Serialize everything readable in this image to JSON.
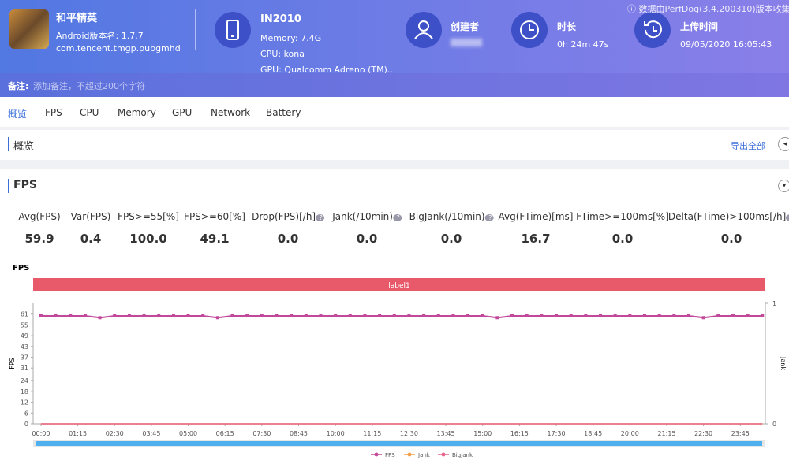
{
  "header": {
    "app": {
      "name": "和平精英",
      "version": "Android版本名: 1.7.7",
      "package": "com.tencent.tmgp.pubgmhd"
    },
    "device": {
      "name": "IN2010",
      "memory": "Memory: 7.4G",
      "cpu": "CPU: kona",
      "gpu": "GPU: Qualcomm Adreno (TM)..."
    },
    "creator": {
      "label": "创建者"
    },
    "duration": {
      "label": "时长",
      "value": "0h 24m 47s"
    },
    "upload": {
      "label": "上传时间",
      "value": "09/05/2020 16:05:43"
    },
    "source_note": "数据由PerfDog(3.4.200310)版本收集"
  },
  "remark": {
    "label": "备注:",
    "placeholder": "添加备注，不超过200个字符"
  },
  "tabs": [
    "概览",
    "FPS",
    "CPU",
    "Memory",
    "GPU",
    "Network",
    "Battery"
  ],
  "overview": {
    "title": "概览",
    "export": "导出全部"
  },
  "fps_section": {
    "title": "FPS",
    "stats": [
      {
        "label": "Avg(FPS)",
        "value": "59.9",
        "help": false
      },
      {
        "label": "Var(FPS)",
        "value": "0.4",
        "help": false
      },
      {
        "label": "FPS>=55[%]",
        "value": "100.0",
        "help": false
      },
      {
        "label": "FPS>=60[%]",
        "value": "49.1",
        "help": false
      },
      {
        "label": "Drop(FPS)[/h]",
        "value": "0.0",
        "help": true
      },
      {
        "label": "Jank(/10min)",
        "value": "0.0",
        "help": true
      },
      {
        "label": "BigJank(/10min)",
        "value": "0.0",
        "help": true
      },
      {
        "label": "Avg(FTime)[ms]",
        "value": "16.7",
        "help": false
      },
      {
        "label": "FTime>=100ms[%]",
        "value": "0.0",
        "help": false
      },
      {
        "label": "Delta(FTime)>100ms[/h]",
        "value": "0.0",
        "help": true
      }
    ]
  },
  "chart_data": {
    "type": "line",
    "title": "FPS",
    "band_label": "label1",
    "band_color": "#e85a6a",
    "ylabel": "FPS",
    "y2label": "Jank",
    "x": [
      0,
      30,
      60,
      90,
      120,
      150,
      180,
      210,
      240,
      270,
      300,
      330,
      360,
      390,
      420,
      450,
      480,
      510,
      540,
      570,
      600,
      630,
      660,
      690,
      720,
      750,
      780,
      810,
      840,
      870,
      900,
      930,
      960,
      990,
      1020,
      1050,
      1080,
      1110,
      1140,
      1170,
      1200,
      1230,
      1260,
      1290,
      1320,
      1350,
      1380,
      1410,
      1440,
      1470
    ],
    "series": [
      {
        "name": "FPS",
        "color": "#c2489b",
        "values": [
          60,
          60,
          60,
          60,
          59,
          60,
          60,
          60,
          60,
          60,
          60,
          60,
          59,
          60,
          60,
          60,
          60,
          60,
          60,
          60,
          60,
          60,
          60,
          60,
          60,
          60,
          60,
          60,
          60,
          60,
          60,
          59,
          60,
          60,
          60,
          60,
          60,
          60,
          60,
          60,
          60,
          60,
          60,
          60,
          60,
          59,
          60,
          60,
          60,
          60
        ]
      },
      {
        "name": "Jank",
        "color": "#f0a04b",
        "axis": "y2",
        "values": [
          0,
          0,
          0,
          0,
          0,
          0,
          0,
          0,
          0,
          0,
          0,
          0,
          0,
          0,
          0,
          0,
          0,
          0,
          0,
          0,
          0,
          0,
          0,
          0,
          0,
          0,
          0,
          0,
          0,
          0,
          0,
          0,
          0,
          0,
          0,
          0,
          0,
          0,
          0,
          0,
          0,
          0,
          0,
          0,
          0,
          0,
          0,
          0,
          0,
          0
        ]
      },
      {
        "name": "BigJank",
        "color": "#e8658a",
        "axis": "y2",
        "values": [
          0,
          0,
          0,
          0,
          0,
          0,
          0,
          0,
          0,
          0,
          0,
          0,
          0,
          0,
          0,
          0,
          0,
          0,
          0,
          0,
          0,
          0,
          0,
          0,
          0,
          0,
          0,
          0,
          0,
          0,
          0,
          0,
          0,
          0,
          0,
          0,
          0,
          0,
          0,
          0,
          0,
          0,
          0,
          0,
          0,
          0,
          0,
          0,
          0,
          0
        ]
      }
    ],
    "xlim": [
      -16,
      1476
    ],
    "xticks": [
      {
        "value": 0,
        "label": "00:00"
      },
      {
        "value": 75,
        "label": "01:15"
      },
      {
        "value": 150,
        "label": "02:30"
      },
      {
        "value": 225,
        "label": "03:45"
      },
      {
        "value": 300,
        "label": "05:00"
      },
      {
        "value": 375,
        "label": "06:15"
      },
      {
        "value": 450,
        "label": "07:30"
      },
      {
        "value": 525,
        "label": "08:45"
      },
      {
        "value": 600,
        "label": "10:00"
      },
      {
        "value": 675,
        "label": "11:15"
      },
      {
        "value": 750,
        "label": "12:30"
      },
      {
        "value": 825,
        "label": "13:45"
      },
      {
        "value": 900,
        "label": "15:00"
      },
      {
        "value": 975,
        "label": "16:15"
      },
      {
        "value": 1050,
        "label": "17:30"
      },
      {
        "value": 1125,
        "label": "18:45"
      },
      {
        "value": 1200,
        "label": "20:00"
      },
      {
        "value": 1275,
        "label": "21:15"
      },
      {
        "value": 1350,
        "label": "22:30"
      },
      {
        "value": 1425,
        "label": "23:45"
      }
    ],
    "ylim": [
      0,
      67
    ],
    "yticks": [
      0,
      6,
      12,
      18,
      24,
      31,
      37,
      43,
      49,
      55,
      61
    ],
    "y2lim": [
      0,
      1
    ],
    "y2ticks": [
      0,
      1
    ]
  }
}
